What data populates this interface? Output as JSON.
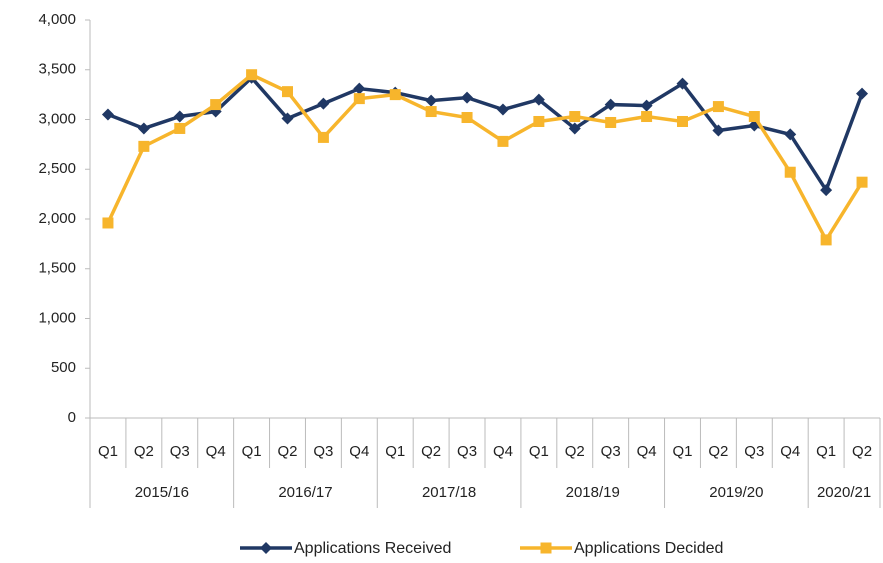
{
  "chart_data": {
    "type": "line",
    "groups": [
      {
        "label": "2015/16",
        "categories": [
          "Q1",
          "Q2",
          "Q3",
          "Q4"
        ]
      },
      {
        "label": "2016/17",
        "categories": [
          "Q1",
          "Q2",
          "Q3",
          "Q4"
        ]
      },
      {
        "label": "2017/18",
        "categories": [
          "Q1",
          "Q2",
          "Q3",
          "Q4"
        ]
      },
      {
        "label": "2018/19",
        "categories": [
          "Q1",
          "Q2",
          "Q3",
          "Q4"
        ]
      },
      {
        "label": "2019/20",
        "categories": [
          "Q1",
          "Q2",
          "Q3",
          "Q4"
        ]
      },
      {
        "label": "2020/21",
        "categories": [
          "Q1",
          "Q2"
        ]
      }
    ],
    "series": [
      {
        "name": "Applications Received",
        "color": "#203864",
        "marker": "diamond",
        "values": [
          3050,
          2910,
          3030,
          3080,
          3420,
          3010,
          3160,
          3310,
          3270,
          3190,
          3220,
          3100,
          3200,
          2910,
          3150,
          3140,
          3360,
          2890,
          2940,
          2850,
          2290,
          3260
        ]
      },
      {
        "name": "Applications Decided",
        "color": "#f7b52c",
        "marker": "square",
        "values": [
          1960,
          2730,
          2910,
          3150,
          3450,
          3280,
          2820,
          3210,
          3250,
          3080,
          3020,
          2780,
          2980,
          3030,
          2970,
          3030,
          2980,
          3130,
          3030,
          2470,
          1790,
          2370
        ]
      }
    ],
    "ylim": [
      0,
      4000
    ],
    "yticks": [
      0,
      500,
      {
        "value": 1000,
        "label": "1,000"
      },
      {
        "value": 1500,
        "label": "1,500"
      },
      {
        "value": 2000,
        "label": "2,000"
      },
      {
        "value": 2500,
        "label": "2,500"
      },
      {
        "value": 3000,
        "label": "3,000"
      },
      {
        "value": 3500,
        "label": "3,500"
      },
      {
        "value": 4000,
        "label": "4,000"
      }
    ],
    "grid": false,
    "legend": "bottom"
  }
}
